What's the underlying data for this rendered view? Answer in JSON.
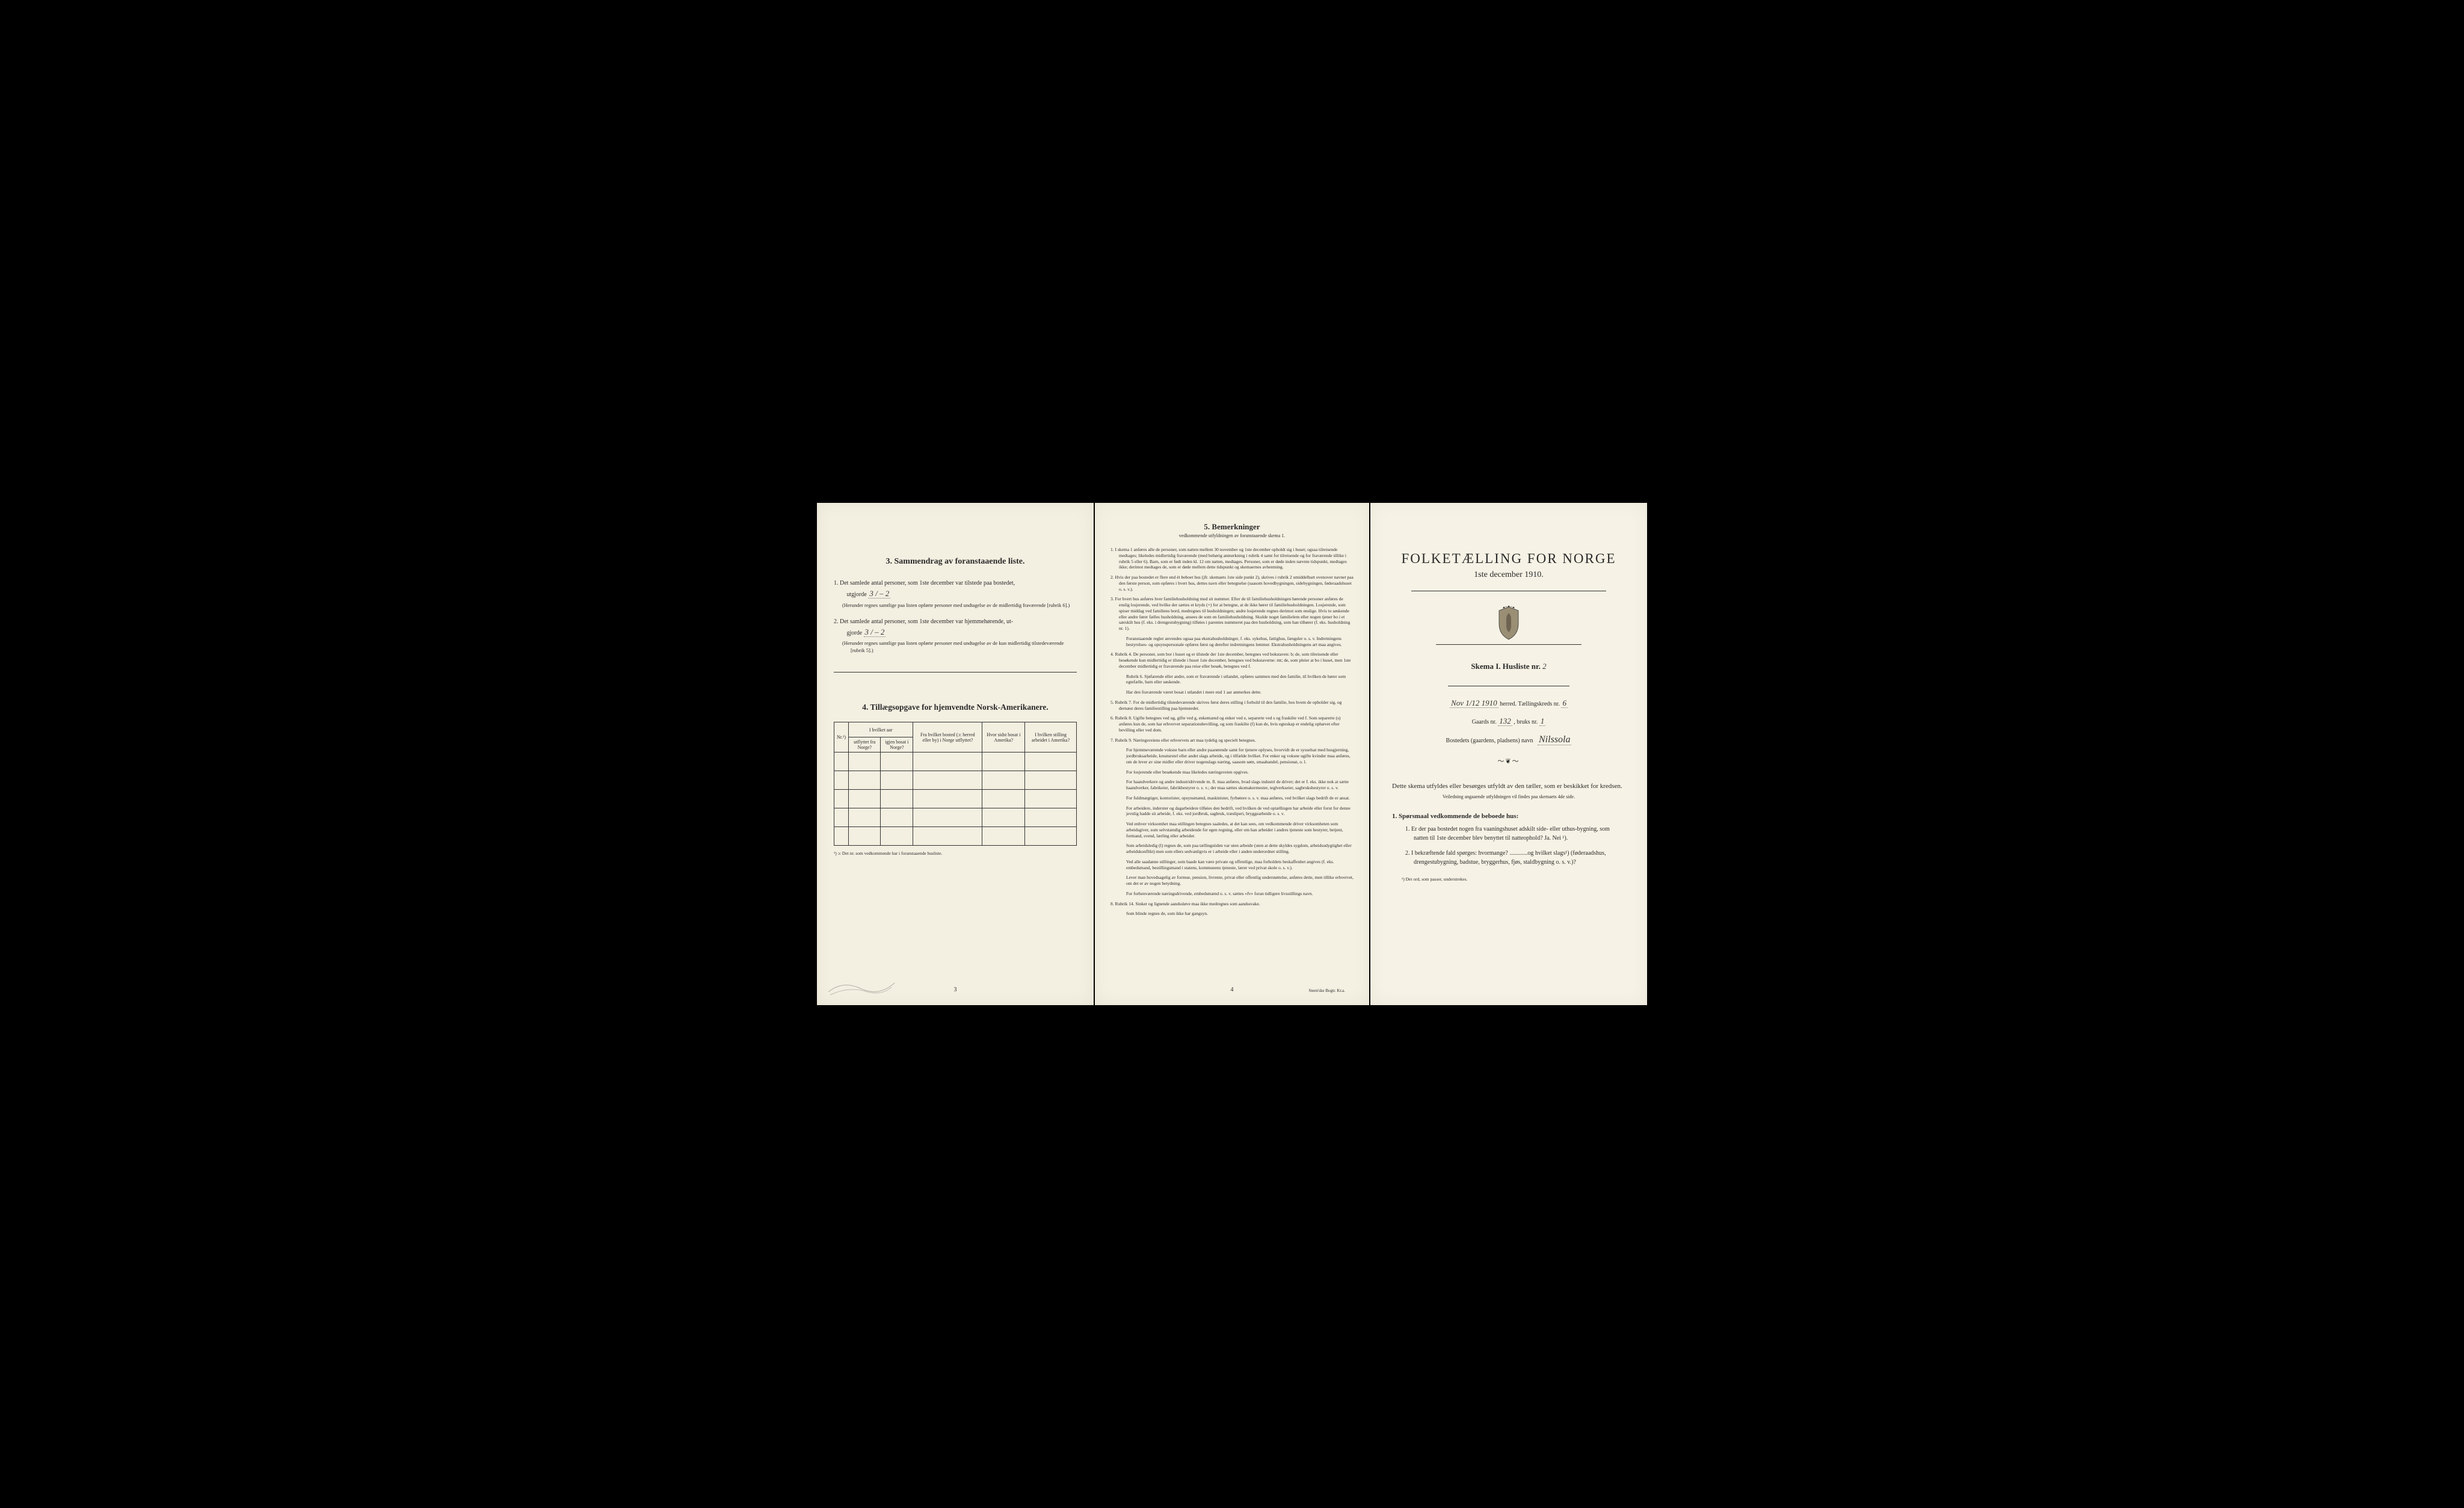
{
  "left": {
    "section3_title": "3.   Sammendrag av foranstaaende liste.",
    "item1_pre": "1. Det samlede antal personer, som 1ste december var tilstede paa bostedet,",
    "item1_label": "utgjorde",
    "item1_hand": "3     / – 2",
    "item1_paren": "(Herunder regnes samtlige paa listen opførte personer med undtagelse av de midlertidig fraværende [rubrik 6].)",
    "item2_pre": "2. Det samlede antal personer, som 1ste december var hjemmehørende, ut-",
    "item2_label": "gjorde",
    "item2_hand": "3    / – 2",
    "item2_paren": "(Herunder regnes samtlige paa listen opførte personer med undtagelse av de kun midlertidig tilstedeværende [rubrik 5].)",
    "section4_title": "4.  Tillægsopgave for hjemvendte Norsk-Amerikanere.",
    "th_nr": "Nr.¹)",
    "th_aar": "I hvilket aar",
    "th_utflyttet": "utflyttet fra Norge?",
    "th_igjen": "igjen bosat i Norge?",
    "th_bosted": "Fra hvilket bosted (ɔ: herred eller by) i Norge utflyttet?",
    "th_hvor": "Hvor sidst bosat i Amerika?",
    "th_stilling": "I hvilken stilling arbeidet i Amerika?",
    "footnote": "¹) ɔ: Det nr. som vedkommende har i foranstaaende husliste.",
    "page_num": "3"
  },
  "center": {
    "title": "5.   Bemerkninger",
    "subtitle": "vedkommende utfyldningen av foranstaaende skema 1.",
    "items": [
      "1. I skema 1 anføres alle de personer, som natten mellem 30 november og 1ste december opholdt sig i huset; ogsaa tilreisende medtages; likeledes midlertidig fraværende (med behørig anmerkning i rubrik 4 samt for tilreisende og for fraværende tillike i rubrik 5 eller 6). Barn, som er født inden kl. 12 om natten, medtages. Personer, som er døde inden nævnte tidspunkt, medtages ikke; derimot medtages de, som er døde mellem dette tidspunkt og skemaernes avhentning.",
      "2. Hvis der paa bostedet er flere end ét beboet hus (jfr. skemaets 1ste side punkt 2), skrives i rubrik 2 umiddelbart ovenover navnet paa den første person, som opføres i hvert hus, dettes navn eller betegnelse (saasom hovedbygningen, sidebygningen, føderaadshuset o. s. v.).",
      "3. For hvert hus anføres hver familiehusholdning med sit nummer. Efter de til familiehusholdningen hørende personer anføres de enslig losjerende, ved hvilke der sættes et kryds (×) for at betegne, at de ikke hører til familiehusholdningen. Losjerende, som spiser middag ved familiens bord, medregnes til husholdningen; andre losjerende regnes derimot som enslige. Hvis to søskende eller andre fører fælles husholdning, ansees de som en familiehusholdning. Skulde noget familielem eller nogen tjener bo i et særskilt hus (f. eks. i drengestubygning) tilføies i parentes nummeret paa den husholdning, som han tilhører (f. eks. husholdning nr. 1).",
      "Foranstaaende regler anvendes ogsaa paa ekstrahusholdninger, f. eks. sykehus, fattighus, fængsler o. s. v. Indretningens bestyrelses- og opsynspersonale opføres først og derefter indretningens lemmer. Ekstrahusholdningens art maa angives.",
      "4. Rubrik 4. De personer, som bor i huset og er tilstede der 1ste december, betegnes ved bokstaven: b; de, som tilreisende eller besøkende kun midlertidig er tilstede i huset 1ste december, betegnes ved bokstaverne: mt; de, som pleier at bo i huset, men 1ste december midlertidig er fraværende paa reise eller besøk, betegnes ved f.",
      "Rubrik 6. Sjøfarende eller andre, som er fraværende i utlandet, opføres sammen med den familie, til hvilken de hører som egtefælle, barn eller søskende.",
      "Har den fraværende været bosat i utlandet i mere end 1 aar anmerkes dette.",
      "5. Rubrik 7. For de midlertidig tilstedeværende skrives først deres stilling i forhold til den familie, hos hvem de opholder sig, og dernæst deres familiestilling paa hjemstedet.",
      "6. Rubrik 8. Ugifte betegnes ved ug, gifte ved g, enkemænd og enker ved e, separerte ved s og fraskilte ved f. Som separerte (s) anføres kun de, som har erhvervet separationsbevilling, og som fraskilte (f) kun de, hvis egteskap er endelig ophævet efter bevilling eller ved dom.",
      "7. Rubrik 9. Næringsveiens eller erhvervets art maa tydelig og specielt betegnes.",
      "For hjemmeværende voksne barn eller andre paarørende samt for tjenere oplyses, hvorvidt de er sysselsat med husgjerning, jordbruksarbeide, kreaturstel eller andet slags arbeide, og i tilfælde hvilket. For enker og voksne ugifte kvinder maa anføres, om de lever av sine midler eller driver nogenslags næring, saasom søm, smaahandel, pensionat, o. l.",
      "For losjerende eller besøkende maa likeledes næringsveien opgives.",
      "For haandverkere og andre industridrivende m. fl. maa anføres, hvad slags industri de driver; det er f. eks. ikke nok at sætte haandverker, fabrikeier, fabrikbestyrer o. s. v.; der maa sættes skomakermester, teglverkseier, sagbruksbestyrer o. s. v.",
      "For fuldmægtiger, kontorister, opsynsmænd, maskinister, fyrbøtere o. s. v. maa anføres, ved hvilket slags bedrift de er ansat.",
      "For arbeidere, inderster og dagarbeidere tilføies den bedrift, ved hvilken de ved optællingen har arbeide eller forut for denne jevnlig hadde sit arbeide, f. eks. ved jordbruk, sagbruk, træsliperi, bryggearbeide o. s. v.",
      "Ved enhver virksomhet maa stillingen betegnes saaledes, at det kan sees, om vedkommende driver virksomheten som arbeidsgiver, som selvstændig arbeidende for egen regning, eller om han arbeider i andres tjeneste som bestyrer, betjent, formand, svend, lærling eller arbeider.",
      "Som arbeidsledig (l) regnes de, som paa tællingstiden var uten arbeide (uten at dette skyldes sygdom, arbeidsudygtighet eller arbeidskonflikt) men som ellers sedvanligvis er i arbeide eller i anden underordnet stilling.",
      "Ved alle saadanne stillinger, som baade kan være private og offentlige, maa forholdets beskaffenhet angives (f. eks. embedsmand, bestillingsmand i statens, kommunens tjeneste, lærer ved privat skole o. s. v.).",
      "Lever man hovedsagelig av formue, pension, livrente, privat eller offentlig understøttelse, anføres dette, men tillike erhvervet, om det er av nogen betydning.",
      "For forhenværende næringsdrivende, embedsmænd o. s. v. sættes «fv» foran tidligere livsstillings navn.",
      "8. Rubrik 14. Sinker og lignende aandssløve maa ikke medregnes som aandssvake.",
      "Som blinde regnes de, som ikke har gangsyn."
    ],
    "page_num": "4",
    "printer": "Steen'ske Bogtr. Kr.a."
  },
  "right": {
    "main_title": "FOLKETÆLLING FOR NORGE",
    "sub_title": "1ste december 1910.",
    "skema_label": "Skema I.  Husliste nr.",
    "skema_hand": "2",
    "herred_hand": "Nov 1/12 1910",
    "herred_label": "herred.  Tællingskreds nr.",
    "kreds_hand": "6",
    "gaards_label": "Gaards nr.",
    "gaards_hand": "132",
    "bruks_label": ", bruks nr.",
    "bruks_hand": "1",
    "bosted_label": "Bostedets (gaardens, pladsens) navn",
    "bosted_hand": "Nilssola",
    "instruction1": "Dette skema utfyldes eller besørges utfyldt av den tæller, som er beskikket for kredsen.",
    "instruction2": "Veiledning angaaende utfyldningen vil findes paa skemaets 4de side.",
    "q_head": "1. Spørsmaal vedkommende de beboede hus:",
    "q1": "1. Er der paa bostedet nogen fra vaaningshuset adskilt side- eller uthus-bygning, som natten til 1ste december blev benyttet til natteophold?   Ja.   Nei ¹).",
    "q2": "2. I bekræftende fald spørges: hvormange? ............og hvilket slags¹) (føderaadshus, drengestubygning, badstue, bryggerhus, fjøs, staldbygning o. s. v.)?",
    "footnote": "¹) Det ord, som passer, understrekes."
  },
  "colors": {
    "paper": "#f5f1e4",
    "ink": "#2a2a2a",
    "border": "#333333"
  }
}
